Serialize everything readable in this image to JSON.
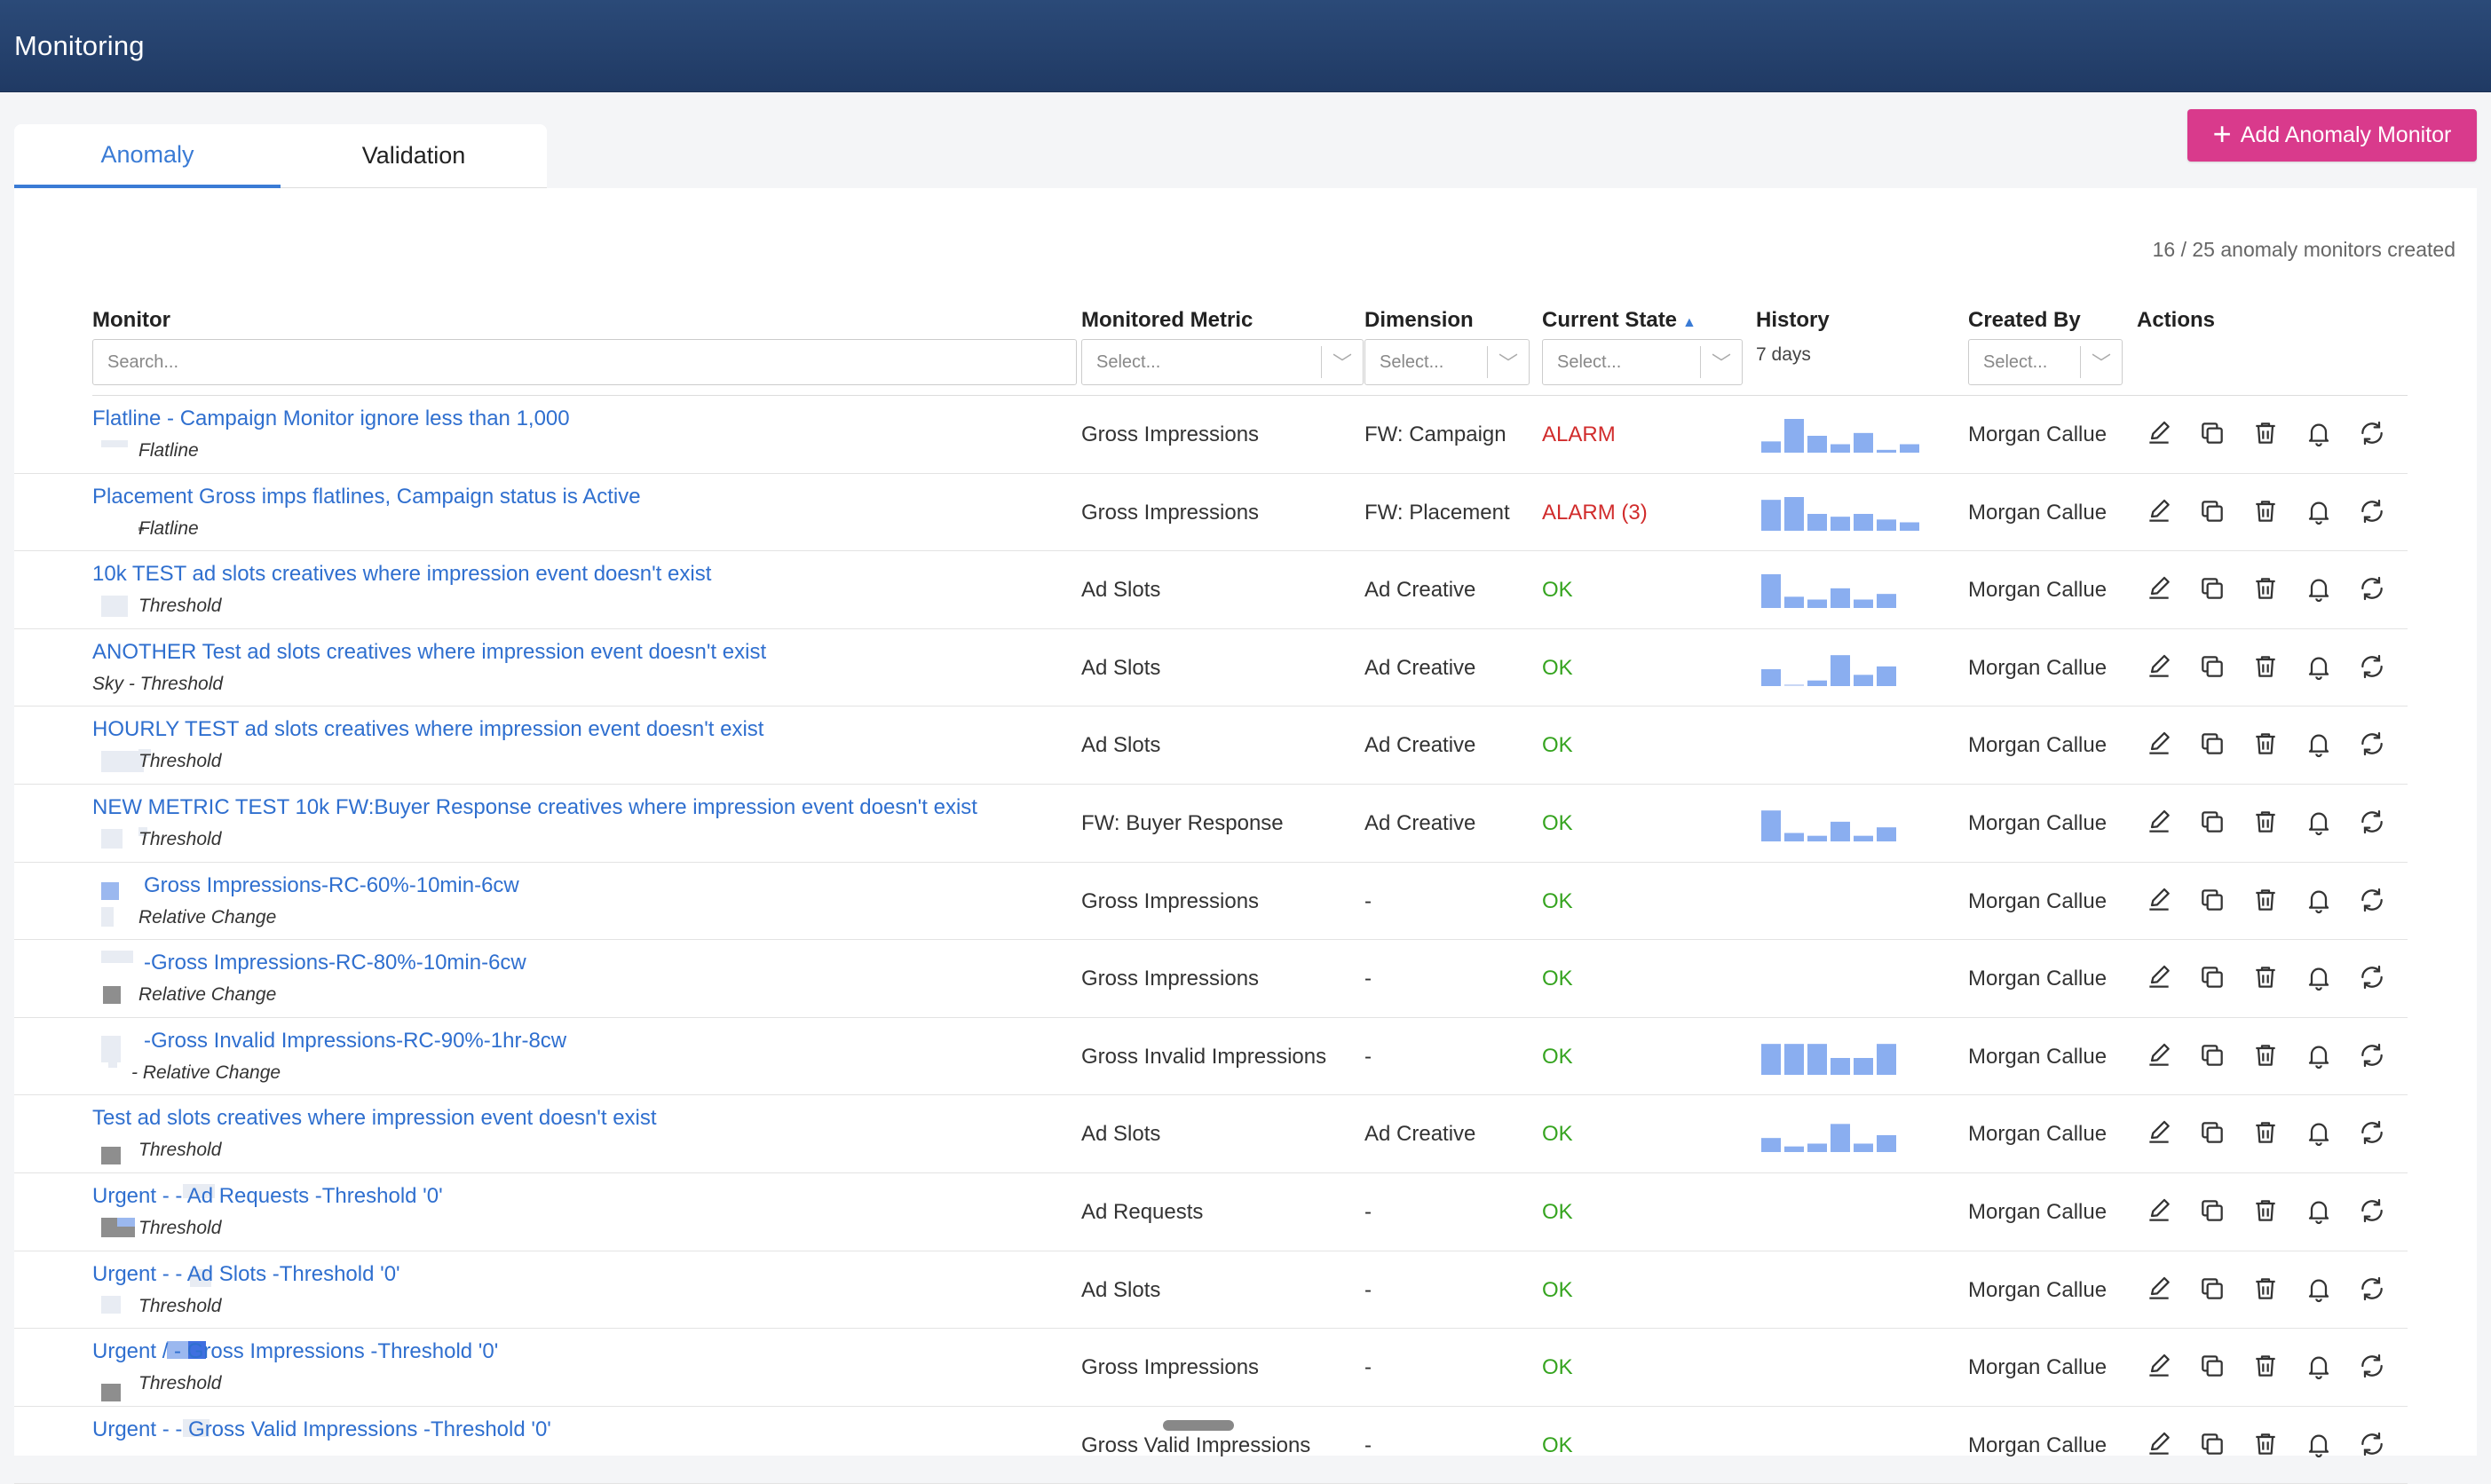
{
  "app": {
    "title": "Monitoring"
  },
  "tabs": [
    {
      "label": "Anomaly"
    },
    {
      "label": "Validation"
    }
  ],
  "add_button": {
    "label": "Add Anomaly Monitor"
  },
  "summary": {
    "count_text": "16 / 25 anomaly monitors created"
  },
  "columns": {
    "monitor": "Monitor",
    "metric": "Monitored Metric",
    "dimension": "Dimension",
    "state": "Current State",
    "history": "History",
    "history_sub": "7 days",
    "created_by": "Created By",
    "actions": "Actions"
  },
  "filters": {
    "search_placeholder": "Search...",
    "select_placeholder": "Select..."
  },
  "colors": {
    "accent": "#3a7bd5",
    "brand": "#d93a8c",
    "alarm": "#d12c2c",
    "ok": "#36a420",
    "spark": "#8aaef0"
  },
  "rows": [
    {
      "name": "Flatline - Campaign Monitor ignore less than 1,000",
      "type": "Flatline",
      "metric": "Gross Impressions",
      "dimension": "FW: Campaign",
      "state": "ALARM",
      "state_kind": "alarm",
      "history": [
        0.2,
        0.6,
        0.3,
        0.15,
        0.35,
        0.05,
        0.15
      ],
      "created_by": "Morgan Callue"
    },
    {
      "name": "Placement Gross imps flatlines, Campaign status is Active",
      "type": "Flatline",
      "metric": "Gross Impressions",
      "dimension": "FW: Placement",
      "state": "ALARM (3)",
      "state_kind": "alarm",
      "history": [
        0.55,
        0.6,
        0.3,
        0.25,
        0.3,
        0.2,
        0.15
      ],
      "created_by": "Morgan Callue"
    },
    {
      "name": "10k TEST ad slots creatives where impression event doesn't exist",
      "type": "Threshold",
      "metric": "Ad Slots",
      "dimension": "Ad Creative",
      "state": "OK",
      "state_kind": "ok",
      "history": [
        0.6,
        0.2,
        0.15,
        0.35,
        0.15,
        0.25
      ],
      "created_by": "Morgan Callue"
    },
    {
      "name": "ANOTHER Test ad slots creatives where impression event doesn't exist",
      "type": "Sky - Threshold",
      "metric": "Ad Slots",
      "dimension": "Ad Creative",
      "state": "OK",
      "state_kind": "ok",
      "history": [
        0.3,
        0,
        0.1,
        0.55,
        0.2,
        0.35
      ],
      "created_by": "Morgan Callue"
    },
    {
      "name": "HOURLY TEST ad slots creatives where impression event doesn't exist",
      "type": "Threshold",
      "metric": "Ad Slots",
      "dimension": "Ad Creative",
      "state": "OK",
      "state_kind": "ok",
      "history": [],
      "created_by": "Morgan Callue"
    },
    {
      "name": "NEW METRIC TEST 10k FW:Buyer Response creatives where impression event doesn't exist",
      "type": "Threshold",
      "metric": "FW: Buyer Response",
      "dimension": "Ad Creative",
      "state": "OK",
      "state_kind": "ok",
      "history": [
        0.55,
        0.15,
        0.1,
        0.35,
        0.1,
        0.25
      ],
      "created_by": "Morgan Callue"
    },
    {
      "name": "Gross Impressions-RC-60%-10min-6cw",
      "type": "Relative Change",
      "metric": "Gross Impressions",
      "dimension": "-",
      "state": "OK",
      "state_kind": "ok",
      "history": [],
      "created_by": "Morgan Callue"
    },
    {
      "name": "-Gross Impressions-RC-80%-10min-6cw",
      "type": "Relative Change",
      "metric": "Gross Impressions",
      "dimension": "-",
      "state": "OK",
      "state_kind": "ok",
      "history": [],
      "created_by": "Morgan Callue"
    },
    {
      "name": "-Gross Invalid Impressions-RC-90%-1hr-8cw",
      "type": "- Relative Change",
      "metric": "Gross Invalid Impressions",
      "dimension": "-",
      "state": "OK",
      "state_kind": "ok",
      "history": [
        0.55,
        0.55,
        0.55,
        0.3,
        0.3,
        0.55
      ],
      "created_by": "Morgan Callue"
    },
    {
      "name": "Test ad slots creatives where impression event doesn't exist",
      "type": "Threshold",
      "metric": "Ad Slots",
      "dimension": "Ad Creative",
      "state": "OK",
      "state_kind": "ok",
      "history": [
        0.25,
        0.1,
        0.15,
        0.5,
        0.15,
        0.3
      ],
      "created_by": "Morgan Callue"
    },
    {
      "name": "Urgent -        - Ad Requests -Threshold '0'",
      "type": "Threshold",
      "metric": "Ad Requests",
      "dimension": "-",
      "state": "OK",
      "state_kind": "ok",
      "history": [],
      "created_by": "Morgan Callue"
    },
    {
      "name": "Urgent -        - Ad Slots -Threshold '0'",
      "type": "Threshold",
      "metric": "Ad Slots",
      "dimension": "-",
      "state": "OK",
      "state_kind": "ok",
      "history": [],
      "created_by": "Morgan Callue"
    },
    {
      "name": "Urgent         / - Gross Impressions -Threshold '0'",
      "type": "Threshold",
      "metric": "Gross Impressions",
      "dimension": "-",
      "state": "OK",
      "state_kind": "ok",
      "history": [],
      "created_by": "Morgan Callue"
    },
    {
      "name": "Urgent -        - Gross Valid Impressions -Threshold '0'",
      "type": "",
      "metric": "Gross Valid Impressions",
      "dimension": "-",
      "state": "OK",
      "state_kind": "ok",
      "history": [],
      "created_by": "Morgan Callue"
    }
  ]
}
